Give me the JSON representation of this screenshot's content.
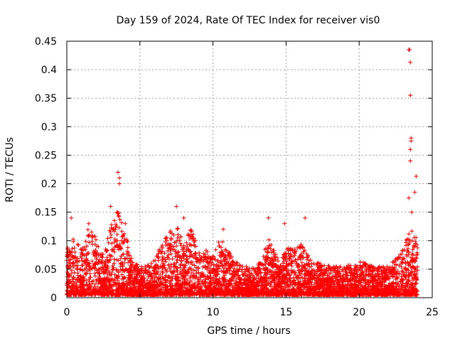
{
  "chart_data": {
    "type": "scatter",
    "title": "Day 159 of 2024, Rate Of TEC Index for receiver vis0",
    "xlabel": "GPS time / hours",
    "ylabel": "ROTI / TECUs",
    "xlim": [
      0,
      25
    ],
    "ylim": [
      0,
      0.45
    ],
    "x_ticks": [
      "0",
      "5",
      "10",
      "15",
      "20",
      "25"
    ],
    "y_ticks": [
      "0",
      "0.05",
      "0.1",
      "0.15",
      "0.2",
      "0.25",
      "0.3",
      "0.35",
      "0.4",
      "0.45"
    ],
    "x_tick_values": [
      0,
      5,
      10,
      15,
      20,
      25
    ],
    "y_tick_values": [
      0,
      0.05,
      0.1,
      0.15,
      0.2,
      0.25,
      0.3,
      0.35,
      0.4,
      0.45
    ],
    "grid": true,
    "marker": "+",
    "series_color": "#ff0000",
    "series": [
      {
        "name": "ROTI",
        "x_range": [
          0,
          24
        ],
        "typical_max": 0.05,
        "notable_points": [
          {
            "x": 0.3,
            "y": 0.14
          },
          {
            "x": 1.5,
            "y": 0.13
          },
          {
            "x": 3.0,
            "y": 0.16
          },
          {
            "x": 3.5,
            "y": 0.22
          },
          {
            "x": 3.6,
            "y": 0.21
          },
          {
            "x": 3.6,
            "y": 0.2
          },
          {
            "x": 4.0,
            "y": 0.13
          },
          {
            "x": 7.5,
            "y": 0.16
          },
          {
            "x": 8.0,
            "y": 0.14
          },
          {
            "x": 10.7,
            "y": 0.12
          },
          {
            "x": 13.8,
            "y": 0.14
          },
          {
            "x": 14.9,
            "y": 0.13
          },
          {
            "x": 16.3,
            "y": 0.14
          },
          {
            "x": 23.4,
            "y": 0.435
          },
          {
            "x": 23.45,
            "y": 0.435
          },
          {
            "x": 23.5,
            "y": 0.413
          },
          {
            "x": 23.5,
            "y": 0.355
          },
          {
            "x": 23.55,
            "y": 0.28
          },
          {
            "x": 23.55,
            "y": 0.275
          },
          {
            "x": 23.5,
            "y": 0.26
          },
          {
            "x": 23.5,
            "y": 0.24
          },
          {
            "x": 23.9,
            "y": 0.213
          },
          {
            "x": 23.8,
            "y": 0.185
          },
          {
            "x": 23.4,
            "y": 0.175
          },
          {
            "x": 23.6,
            "y": 0.15
          }
        ]
      }
    ]
  }
}
